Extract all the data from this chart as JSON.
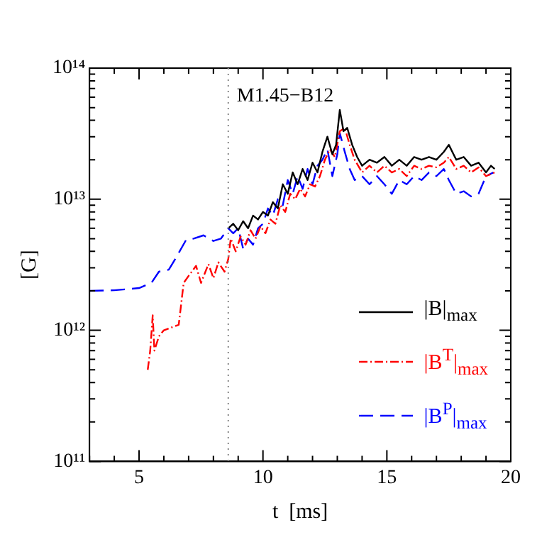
{
  "chart_data": {
    "type": "line",
    "xlabel": "t  [ms]",
    "ylabel": "[G]",
    "log": "y",
    "grid": false,
    "legend": "bottom right",
    "marker": "none",
    "xlim": [
      3,
      20
    ],
    "xticks": [
      {
        "value": 3,
        "label": null
      },
      {
        "value": 4,
        "label": null
      },
      5,
      {
        "value": 6,
        "label": null
      },
      {
        "value": 7,
        "label": null
      },
      {
        "value": 8,
        "label": null
      },
      {
        "value": 9,
        "label": null
      },
      10,
      {
        "value": 11,
        "label": null
      },
      {
        "value": 12,
        "label": null
      },
      {
        "value": 13,
        "label": null
      },
      {
        "value": 14,
        "label": null
      },
      15,
      {
        "value": 16,
        "label": null
      },
      {
        "value": 17,
        "label": null
      },
      {
        "value": 18,
        "label": null
      },
      {
        "value": 19,
        "label": null
      },
      20
    ],
    "ylim": [
      100000000000.0,
      100000000000000.0
    ],
    "yticks": [
      {
        "value": 100000000000.0,
        "label": "10¹¹"
      },
      {
        "value": 200000000000.0,
        "label": null
      },
      {
        "value": 300000000000.0,
        "label": null
      },
      {
        "value": 400000000000.0,
        "label": null
      },
      {
        "value": 500000000000.0,
        "label": null
      },
      {
        "value": 600000000000.0,
        "label": null
      },
      {
        "value": 700000000000.0,
        "label": null
      },
      {
        "value": 800000000000.0,
        "label": null
      },
      {
        "value": 900000000000.0,
        "label": null
      },
      {
        "value": 1000000000000.0,
        "label": "10¹²"
      },
      {
        "value": 2000000000000.0,
        "label": null
      },
      {
        "value": 3000000000000.0,
        "label": null
      },
      {
        "value": 4000000000000.0,
        "label": null
      },
      {
        "value": 5000000000000.0,
        "label": null
      },
      {
        "value": 6000000000000.0,
        "label": null
      },
      {
        "value": 7000000000000.0,
        "label": null
      },
      {
        "value": 8000000000000.0,
        "label": null
      },
      {
        "value": 9000000000000.0,
        "label": null
      },
      {
        "value": 10000000000000.0,
        "label": "10¹³"
      },
      {
        "value": 20000000000000.0,
        "label": null
      },
      {
        "value": 30000000000000.0,
        "label": null
      },
      {
        "value": 40000000000000.0,
        "label": null
      },
      {
        "value": 50000000000000.0,
        "label": null
      },
      {
        "value": 60000000000000.0,
        "label": null
      },
      {
        "value": 70000000000000.0,
        "label": null
      },
      {
        "value": 80000000000000.0,
        "label": null
      },
      {
        "value": 90000000000000.0,
        "label": null
      },
      {
        "value": 100000000000000.0,
        "label": "10¹⁴"
      }
    ],
    "ref_lines": [
      {
        "axis": "x",
        "value": 8.6,
        "color": "#888888",
        "line_style": "dotted"
      }
    ],
    "annotations": [
      "M1.45−B12"
    ],
    "series": [
      {
        "name": "|B|$_{max}$",
        "color": "#000000",
        "line_style": "solid",
        "x": [
          8.6,
          8.8,
          9.0,
          9.2,
          9.4,
          9.6,
          9.8,
          10.0,
          10.2,
          10.4,
          10.6,
          10.8,
          11.0,
          11.2,
          11.4,
          11.6,
          11.8,
          12.0,
          12.2,
          12.4,
          12.6,
          12.8,
          12.95,
          13.1,
          13.25,
          13.4,
          13.6,
          13.8,
          14.0,
          14.3,
          14.6,
          14.9,
          15.2,
          15.5,
          15.8,
          16.1,
          16.4,
          16.7,
          17.0,
          17.3,
          17.5,
          17.8,
          18.1,
          18.4,
          18.7,
          19.0,
          19.2,
          19.35
        ],
        "values": [
          6000000000000.0,
          6500000000000.0,
          5800000000000.0,
          6800000000000.0,
          6000000000000.0,
          7500000000000.0,
          7000000000000.0,
          8000000000000.0,
          7500000000000.0,
          9500000000000.0,
          8500000000000.0,
          13000000000000.0,
          11000000000000.0,
          16000000000000.0,
          13000000000000.0,
          17000000000000.0,
          14000000000000.0,
          19000000000000.0,
          16000000000000.0,
          23000000000000.0,
          30000000000000.0,
          22000000000000.0,
          26000000000000.0,
          48000000000000.0,
          33000000000000.0,
          35000000000000.0,
          26000000000000.0,
          21000000000000.0,
          18000000000000.0,
          20000000000000.0,
          19000000000000.0,
          21000000000000.0,
          18000000000000.0,
          20000000000000.0,
          18000000000000.0,
          21000000000000.0,
          20000000000000.0,
          21000000000000.0,
          20000000000000.0,
          23000000000000.0,
          26000000000000.0,
          20000000000000.0,
          21000000000000.0,
          18000000000000.0,
          19000000000000.0,
          16000000000000.0,
          18000000000000.0,
          17000000000000.0
        ]
      },
      {
        "name": "|B$^{T}$|$_{max}$",
        "color": "#ff0000",
        "line_style": "dashdot",
        "x": [
          5.35,
          5.45,
          5.55,
          5.62,
          5.8,
          6.0,
          6.3,
          6.6,
          6.8,
          7.0,
          7.3,
          7.5,
          7.8,
          8.0,
          8.2,
          8.45,
          8.6,
          8.7,
          8.9,
          9.1,
          9.3,
          9.5,
          9.7,
          9.9,
          10.1,
          10.3,
          10.5,
          10.7,
          10.9,
          11.1,
          11.3,
          11.5,
          11.7,
          11.9,
          12.1,
          12.3,
          12.5,
          12.7,
          12.9,
          13.1,
          13.3,
          13.5,
          13.7,
          14.0,
          14.3,
          14.6,
          14.9,
          15.2,
          15.5,
          15.8,
          16.1,
          16.4,
          16.7,
          17.0,
          17.3,
          17.5,
          17.8,
          18.1,
          18.4,
          18.7,
          19.0,
          19.35
        ],
        "values": [
          500000000000.0,
          700000000000.0,
          1300000000000.0,
          700000000000.0,
          900000000000.0,
          1000000000000.0,
          1050000000000.0,
          1100000000000.0,
          2300000000000.0,
          2600000000000.0,
          3100000000000.0,
          2300000000000.0,
          3200000000000.0,
          2500000000000.0,
          3300000000000.0,
          2800000000000.0,
          3500000000000.0,
          5000000000000.0,
          4000000000000.0,
          5200000000000.0,
          4500000000000.0,
          5800000000000.0,
          5000000000000.0,
          6200000000000.0,
          5500000000000.0,
          7000000000000.0,
          6500000000000.0,
          9000000000000.0,
          8000000000000.0,
          11000000000000.0,
          10000000000000.0,
          12000000000000.0,
          10500000000000.0,
          13000000000000.0,
          12500000000000.0,
          15000000000000.0,
          20000000000000.0,
          24000000000000.0,
          21000000000000.0,
          33000000000000.0,
          35000000000000.0,
          26000000000000.0,
          20000000000000.0,
          16000000000000.0,
          18000000000000.0,
          16000000000000.0,
          18000000000000.0,
          16000000000000.0,
          17000000000000.0,
          15000000000000.0,
          18000000000000.0,
          17000000000000.0,
          18000000000000.0,
          17500000000000.0,
          19000000000000.0,
          21000000000000.0,
          17000000000000.0,
          18000000000000.0,
          16000000000000.0,
          17500000000000.0,
          15000000000000.0,
          16000000000000.0
        ]
      },
      {
        "name": "|B$^{P}$|$_{max}$",
        "color": "#0000ff",
        "line_style": "dashed",
        "x": [
          3,
          4,
          5,
          5.5,
          5.8,
          6.2,
          6.5,
          6.9,
          7.2,
          7.6,
          8.0,
          8.3,
          8.6,
          8.8,
          9.0,
          9.2,
          9.4,
          9.6,
          9.8,
          10.0,
          10.2,
          10.4,
          10.6,
          10.8,
          11.0,
          11.2,
          11.4,
          11.6,
          11.8,
          12.0,
          12.2,
          12.4,
          12.6,
          12.8,
          13.0,
          13.1,
          13.3,
          13.5,
          13.7,
          14.0,
          14.3,
          14.6,
          14.9,
          15.2,
          15.5,
          15.8,
          16.1,
          16.4,
          16.7,
          17.0,
          17.3,
          17.5,
          17.8,
          18.1,
          18.4,
          18.7,
          19.0,
          19.3
        ],
        "values": [
          2000000000000.0,
          2020000000000.0,
          2100000000000.0,
          2300000000000.0,
          2800000000000.0,
          2900000000000.0,
          3600000000000.0,
          4900000000000.0,
          5000000000000.0,
          5300000000000.0,
          4800000000000.0,
          5000000000000.0,
          6000000000000.0,
          5500000000000.0,
          6000000000000.0,
          4200000000000.0,
          5000000000000.0,
          4500000000000.0,
          6000000000000.0,
          6500000000000.0,
          8500000000000.0,
          7500000000000.0,
          10000000000000.0,
          9000000000000.0,
          14000000000000.0,
          11000000000000.0,
          15000000000000.0,
          12000000000000.0,
          17000000000000.0,
          13000000000000.0,
          18000000000000.0,
          20000000000000.0,
          24000000000000.0,
          15000000000000.0,
          22000000000000.0,
          32000000000000.0,
          23000000000000.0,
          17000000000000.0,
          14000000000000.0,
          15000000000000.0,
          13000000000000.0,
          15000000000000.0,
          13000000000000.0,
          11000000000000.0,
          14000000000000.0,
          13000000000000.0,
          15000000000000.0,
          14000000000000.0,
          16000000000000.0,
          15000000000000.0,
          17000000000000.0,
          14000000000000.0,
          11000000000000.0,
          11500000000000.0,
          10500000000000.0,
          11000000000000.0,
          15000000000000.0,
          16000000000000.0
        ]
      }
    ]
  }
}
